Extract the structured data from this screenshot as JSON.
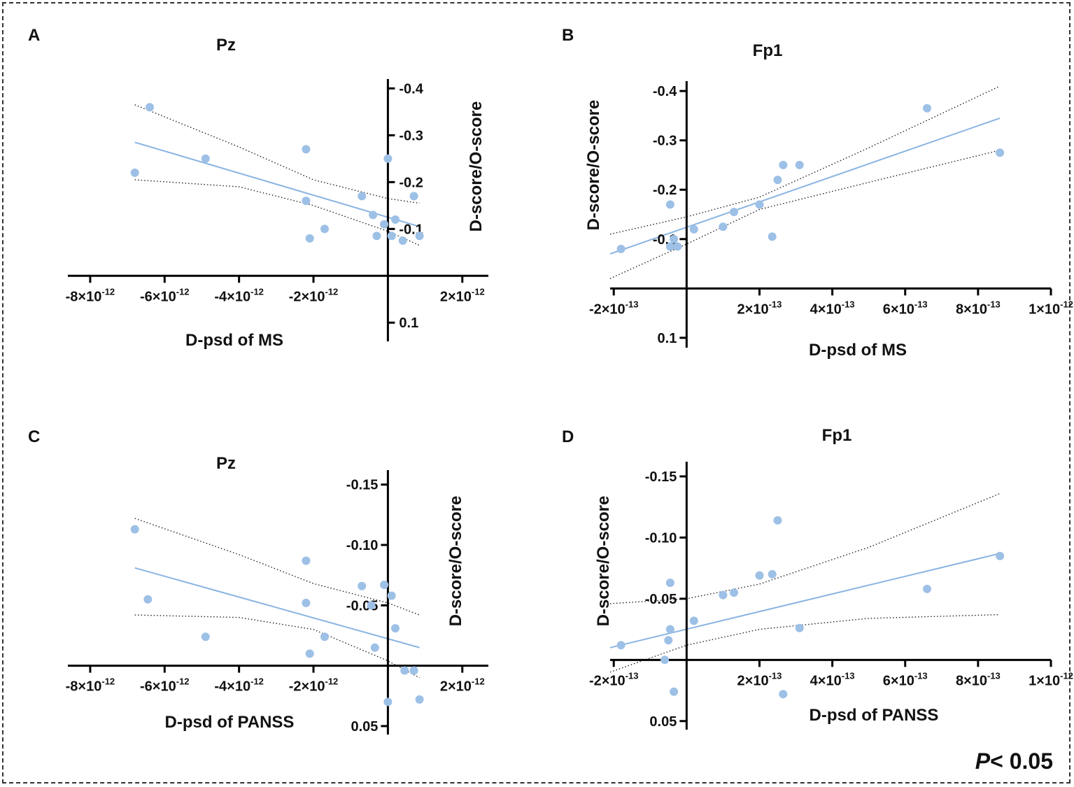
{
  "colors": {
    "point": "#9dc0e6",
    "fit": "#8ab4e2",
    "axis": "#000000",
    "band": "#222222"
  },
  "footer": {
    "p_italic": "P",
    "p_rest": "< 0.05"
  },
  "chart_data": [
    {
      "panel": "A",
      "type": "scatter",
      "title": "Pz",
      "xlabel": "D-psd of MS",
      "ylabel": "D-score/O-score",
      "xlim": [
        -8.6e-12,
        2.7e-12
      ],
      "ylim": [
        0.14,
        -0.42
      ],
      "xticks": [
        {
          "mantissa": "-8",
          "exp": "-12",
          "v": -8e-12
        },
        {
          "mantissa": "-6",
          "exp": "-12",
          "v": -6e-12
        },
        {
          "mantissa": "-4",
          "exp": "-12",
          "v": -4e-12
        },
        {
          "mantissa": "-2",
          "exp": "-12",
          "v": -2e-12
        },
        {
          "mantissa": "2",
          "exp": "-12",
          "v": 2e-12
        }
      ],
      "yticks": [
        {
          "label": "-0.4",
          "v": -0.4
        },
        {
          "label": "-0.3",
          "v": -0.3
        },
        {
          "label": "-0.2",
          "v": -0.2
        },
        {
          "label": "-0.1",
          "v": -0.1
        },
        {
          "label": "0.1",
          "v": 0.1
        }
      ],
      "ytick_side": "right",
      "points": [
        {
          "x": -6.8e-12,
          "y": -0.22
        },
        {
          "x": -6.4e-12,
          "y": -0.36
        },
        {
          "x": -4.9e-12,
          "y": -0.25
        },
        {
          "x": -2.2e-12,
          "y": -0.27
        },
        {
          "x": -2.2e-12,
          "y": -0.16
        },
        {
          "x": -2.1e-12,
          "y": -0.08
        },
        {
          "x": -1.7e-12,
          "y": -0.1
        },
        {
          "x": -7e-13,
          "y": -0.17
        },
        {
          "x": -4e-13,
          "y": -0.13
        },
        {
          "x": -3e-13,
          "y": -0.085
        },
        {
          "x": -1e-13,
          "y": -0.11
        },
        {
          "x": 0.0,
          "y": -0.25
        },
        {
          "x": 1e-13,
          "y": -0.085
        },
        {
          "x": 2e-13,
          "y": -0.12
        },
        {
          "x": 4e-13,
          "y": -0.075
        },
        {
          "x": 7e-13,
          "y": -0.17
        },
        {
          "x": 8.5e-13,
          "y": -0.085
        }
      ],
      "fit": {
        "x": [
          -6.8e-12,
          8.5e-13
        ],
        "y": [
          -0.285,
          -0.105
        ]
      },
      "ci_upper": {
        "x": [
          -6.8e-12,
          -4e-12,
          -2e-12,
          0.0,
          8.5e-13
        ],
        "y": [
          -0.365,
          -0.275,
          -0.205,
          -0.165,
          -0.155
        ]
      },
      "ci_lower": {
        "x": [
          -6.8e-12,
          -4e-12,
          -2e-12,
          0.0,
          8.5e-13
        ],
        "y": [
          -0.205,
          -0.19,
          -0.15,
          -0.095,
          -0.065
        ]
      }
    },
    {
      "panel": "B",
      "type": "scatter",
      "title": "Fp1",
      "xlabel": "D-psd of MS",
      "ylabel": "D-score/O-score",
      "xlim": [
        -2.1e-13,
        1e-12
      ],
      "ylim": [
        0.12,
        -0.42
      ],
      "xticks": [
        {
          "mantissa": "-2",
          "exp": "-13",
          "v": -2e-13
        },
        {
          "mantissa": "2",
          "exp": "-13",
          "v": 2e-13
        },
        {
          "mantissa": "4",
          "exp": "-13",
          "v": 4e-13
        },
        {
          "mantissa": "6",
          "exp": "-13",
          "v": 6e-13
        },
        {
          "mantissa": "8",
          "exp": "-13",
          "v": 8e-13
        },
        {
          "mantissa": "1",
          "exp": "-12",
          "v": 1e-12
        }
      ],
      "yticks": [
        {
          "label": "-0.4",
          "v": -0.4
        },
        {
          "label": "-0.3",
          "v": -0.3
        },
        {
          "label": "-0.2",
          "v": -0.2
        },
        {
          "label": "-0.1",
          "v": -0.1
        },
        {
          "label": "0.1",
          "v": 0.1
        }
      ],
      "ytick_side": "left",
      "points": [
        {
          "x": -1.8e-13,
          "y": -0.08
        },
        {
          "x": -4.5e-14,
          "y": -0.17
        },
        {
          "x": -4.5e-14,
          "y": -0.085
        },
        {
          "x": -3.5e-14,
          "y": -0.1
        },
        {
          "x": -2.5e-14,
          "y": -0.085
        },
        {
          "x": 2e-14,
          "y": -0.12
        },
        {
          "x": 1e-13,
          "y": -0.125
        },
        {
          "x": 1.3e-13,
          "y": -0.155
        },
        {
          "x": 2e-13,
          "y": -0.17
        },
        {
          "x": 2.35e-13,
          "y": -0.105
        },
        {
          "x": 2.5e-13,
          "y": -0.22
        },
        {
          "x": 2.65e-13,
          "y": -0.25
        },
        {
          "x": 3.1e-13,
          "y": -0.25
        },
        {
          "x": 6.6e-13,
          "y": -0.365
        },
        {
          "x": 8.6e-13,
          "y": -0.275
        }
      ],
      "fit": {
        "x": [
          -2.1e-13,
          8.6e-13
        ],
        "y": [
          -0.07,
          -0.345
        ]
      },
      "ci_upper": {
        "x": [
          -2.1e-13,
          0.0,
          2e-13,
          5e-13,
          8.6e-13
        ],
        "y": [
          -0.11,
          -0.145,
          -0.185,
          -0.285,
          -0.41
        ]
      },
      "ci_lower": {
        "x": [
          -2.1e-13,
          0.0,
          2e-13,
          5e-13,
          8.6e-13
        ],
        "y": [
          -0.02,
          -0.09,
          -0.16,
          -0.215,
          -0.28
        ]
      }
    },
    {
      "panel": "C",
      "type": "scatter",
      "title": "Pz",
      "xlabel": "D-psd of PANSS",
      "ylabel": "D-score/O-score",
      "xlim": [
        -8.6e-12,
        2.7e-12
      ],
      "ylim": [
        0.057,
        -0.162
      ],
      "xticks": [
        {
          "mantissa": "-8",
          "exp": "-12",
          "v": -8e-12
        },
        {
          "mantissa": "-6",
          "exp": "-12",
          "v": -6e-12
        },
        {
          "mantissa": "-4",
          "exp": "-12",
          "v": -4e-12
        },
        {
          "mantissa": "-2",
          "exp": "-12",
          "v": -2e-12
        },
        {
          "mantissa": "2",
          "exp": "-12",
          "v": 2e-12
        }
      ],
      "yticks": [
        {
          "label": "-0.15",
          "v": -0.15
        },
        {
          "label": "-0.10",
          "v": -0.1
        },
        {
          "label": "-0.05",
          "v": -0.05
        },
        {
          "label": "0.05",
          "v": 0.05
        }
      ],
      "ytick_side": "left",
      "points": [
        {
          "x": -6.8e-12,
          "y": -0.113
        },
        {
          "x": -6.45e-12,
          "y": -0.055
        },
        {
          "x": -4.9e-12,
          "y": -0.024
        },
        {
          "x": -2.2e-12,
          "y": -0.087
        },
        {
          "x": -2.2e-12,
          "y": -0.052
        },
        {
          "x": -2.1e-12,
          "y": -0.01
        },
        {
          "x": -1.7e-12,
          "y": -0.024
        },
        {
          "x": -7e-13,
          "y": -0.066
        },
        {
          "x": -4.5e-13,
          "y": -0.05
        },
        {
          "x": -3.5e-13,
          "y": -0.015
        },
        {
          "x": -1e-13,
          "y": -0.067
        },
        {
          "x": 0.0,
          "y": 0.03
        },
        {
          "x": 1e-13,
          "y": -0.058
        },
        {
          "x": 2e-13,
          "y": -0.031
        },
        {
          "x": 4.5e-13,
          "y": 0.004
        },
        {
          "x": 7e-13,
          "y": 0.004
        },
        {
          "x": 8.5e-13,
          "y": 0.028
        }
      ],
      "fit": {
        "x": [
          -6.8e-12,
          8.5e-13
        ],
        "y": [
          -0.081,
          -0.015
        ]
      },
      "ci_upper": {
        "x": [
          -6.8e-12,
          -4e-12,
          -2e-12,
          0.0,
          8.5e-13
        ],
        "y": [
          -0.122,
          -0.092,
          -0.068,
          -0.052,
          -0.042
        ]
      },
      "ci_lower": {
        "x": [
          -6.8e-12,
          -4e-12,
          -2e-12,
          0.0,
          8.5e-13
        ],
        "y": [
          -0.042,
          -0.04,
          -0.03,
          -0.004,
          0.01
        ]
      }
    },
    {
      "panel": "D",
      "type": "scatter",
      "title": "Fp1",
      "xlabel": "D-psd of PANSS",
      "ylabel": "D-score/O-score",
      "xlim": [
        -2.1e-13,
        1e-12
      ],
      "ylim": [
        0.057,
        -0.162
      ],
      "xticks": [
        {
          "mantissa": "-2",
          "exp": "-13",
          "v": -2e-13
        },
        {
          "mantissa": "2",
          "exp": "-13",
          "v": 2e-13
        },
        {
          "mantissa": "4",
          "exp": "-13",
          "v": 4e-13
        },
        {
          "mantissa": "6",
          "exp": "-13",
          "v": 6e-13
        },
        {
          "mantissa": "8",
          "exp": "-13",
          "v": 8e-13
        },
        {
          "mantissa": "1",
          "exp": "-12",
          "v": 1e-12
        }
      ],
      "yticks": [
        {
          "label": "-0.15",
          "v": -0.15
        },
        {
          "label": "-0.10",
          "v": -0.1
        },
        {
          "label": "-0.05",
          "v": -0.05
        },
        {
          "label": "0.05",
          "v": 0.05
        }
      ],
      "ytick_side": "left",
      "points": [
        {
          "x": -1.8e-13,
          "y": -0.012
        },
        {
          "x": -4.5e-14,
          "y": -0.063
        },
        {
          "x": -4.5e-14,
          "y": -0.025
        },
        {
          "x": -5e-14,
          "y": -0.016
        },
        {
          "x": -6e-14,
          "y": 0.0
        },
        {
          "x": -3.5e-14,
          "y": 0.026
        },
        {
          "x": 2e-14,
          "y": -0.032
        },
        {
          "x": 1e-13,
          "y": -0.053
        },
        {
          "x": 1.3e-13,
          "y": -0.055
        },
        {
          "x": 2e-13,
          "y": -0.069
        },
        {
          "x": 2.35e-13,
          "y": -0.07
        },
        {
          "x": 2.5e-13,
          "y": -0.114
        },
        {
          "x": 2.65e-13,
          "y": 0.028
        },
        {
          "x": 3.1e-13,
          "y": -0.026
        },
        {
          "x": 6.6e-13,
          "y": -0.058
        },
        {
          "x": 8.6e-13,
          "y": -0.085
        }
      ],
      "fit": {
        "x": [
          -2.1e-13,
          8.6e-13
        ],
        "y": [
          -0.01,
          -0.087
        ]
      },
      "ci_upper": {
        "x": [
          -2.1e-13,
          0.0,
          2e-13,
          5e-13,
          8.6e-13
        ],
        "y": [
          -0.046,
          -0.05,
          -0.062,
          -0.092,
          -0.136
        ]
      },
      "ci_lower": {
        "x": [
          -2.1e-13,
          0.0,
          2e-13,
          5e-13,
          8.6e-13
        ],
        "y": [
          0.01,
          -0.012,
          -0.025,
          -0.034,
          -0.037
        ]
      }
    }
  ]
}
